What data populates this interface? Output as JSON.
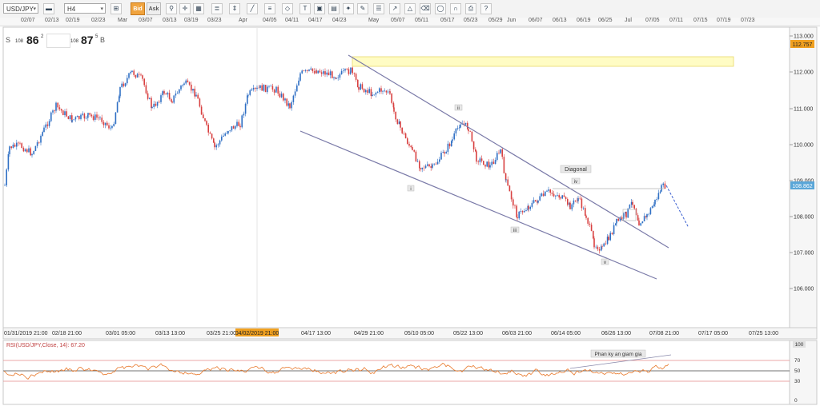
{
  "toolbar": {
    "symbol": "USD/JPY",
    "timeframe": "H4",
    "bid_label": "Bid",
    "ask_label": "Ask",
    "icons": [
      "chart-type-icon",
      "draw-icon",
      "indicator-icon",
      "zoom-icon",
      "crosshair-icon",
      "grid-icon",
      "layers-icon",
      "scale-icon",
      "line-tool-icon",
      "fib-icon",
      "shape-icon",
      "text-icon",
      "settings-icon",
      "alert-icon",
      "save-icon",
      "print-icon",
      "camera-icon",
      "ellipse-icon",
      "arrow-icon",
      "eraser-icon",
      "magnet-icon",
      "help-icon"
    ]
  },
  "top_dates": [
    "02/07",
    "02/13",
    "02/19",
    "02/23",
    "Mar",
    "03/07",
    "03/13",
    "03/19",
    "03/23",
    "Apr",
    "04/05",
    "04/11",
    "04/17",
    "04/23",
    "May",
    "05/07",
    "05/11",
    "05/17",
    "05/23",
    "05/29",
    "Jun",
    "06/07",
    "06/13",
    "06/19",
    "06/25",
    "Jul",
    "07/05",
    "07/11",
    "07/15",
    "07/19",
    "07/23"
  ],
  "quote": {
    "sell_label": "S",
    "sell_big_figure": "108",
    "sell_pips": "86",
    "sell_fraction": "2",
    "buy_big_figure": "108",
    "buy_pips": "87",
    "buy_fraction": "5",
    "buy_label": "B"
  },
  "price_axis": {
    "ticks": [
      "113.000",
      "112.000",
      "111.000",
      "110.000",
      "109.000",
      "108.000",
      "107.000",
      "106.000"
    ],
    "zone_price": "112.757",
    "current_price": "108.862",
    "zone_color": "#f0a020",
    "current_color": "#5aa6d8"
  },
  "time_axis": {
    "labels": [
      "01/31/2019 21:00",
      "02/18 21:00",
      "03/01 05:00",
      "03/13 13:00",
      "03/25 21:00",
      "04/17 13:00",
      "04/29 21:00",
      "05/10 05:00",
      "05/22 13:00",
      "06/03 21:00",
      "06/14 05:00",
      "06/26 13:00",
      "07/08 21:00",
      "07/17 05:00",
      "07/25 13:00"
    ],
    "highlight": "04/02/2019 21:00",
    "highlight_color": "#f0a020"
  },
  "annotations": {
    "wave_i": "i",
    "wave_ii": "ii",
    "wave_iii": "iii",
    "wave_iv": "iv",
    "wave_v": "v",
    "pattern": "Diagonal",
    "divergence": "Phan ky an giam gia"
  },
  "rsi": {
    "title": "RSI(USD/JPY,Close, 14): 67.20",
    "levels": [
      "100",
      "70",
      "50",
      "30",
      "0"
    ],
    "line_color": "#e8782a"
  },
  "colors": {
    "bull_candle": "#2f6fc4",
    "bear_candle": "#d84040",
    "trend_line": "#7a7aa8",
    "zone_fill": "#fffcc4"
  }
}
